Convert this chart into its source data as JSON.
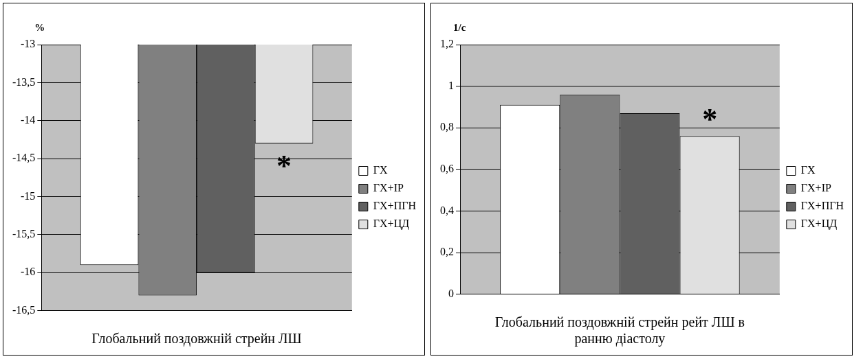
{
  "chart_data": [
    {
      "type": "bar",
      "ylabel": "%",
      "xlabel": "Глобальний поздовжній стрейн ЛШ",
      "categories": [
        null
      ],
      "series": [
        {
          "name": "ГХ",
          "color": "#ffffff",
          "values": [
            -15.9
          ]
        },
        {
          "name": "ГХ+ІР",
          "color": "#808080",
          "values": [
            -16.3
          ]
        },
        {
          "name": "ГХ+ПГН",
          "color": "#606060",
          "values": [
            -16.0
          ]
        },
        {
          "name": "ГХ+ЦД",
          "color": "#e0e0e0",
          "values": [
            -14.3
          ]
        }
      ],
      "ylim": [
        -16.5,
        -13
      ],
      "yticks": [
        -13,
        {
          "value": -13.5,
          "label": "-13,5"
        },
        -14,
        {
          "value": -14.5,
          "label": "-14,5"
        },
        -15,
        {
          "value": -15.5,
          "label": "-15,5"
        },
        -16,
        {
          "value": -16.5,
          "label": "-16,5"
        }
      ],
      "grid": "y",
      "legend": "right",
      "annotations": [
        "*"
      ]
    },
    {
      "type": "bar",
      "ylabel": "1/с",
      "xlabel": "Глобальний поздовжній стрейн рейт ЛШ в ранню діастолу",
      "categories": [
        null
      ],
      "series": [
        {
          "name": "ГХ",
          "color": "#ffffff",
          "values": [
            0.91
          ]
        },
        {
          "name": "ГХ+ІР",
          "color": "#808080",
          "values": [
            0.96
          ]
        },
        {
          "name": "ГХ+ПГН",
          "color": "#606060",
          "values": [
            0.87
          ]
        },
        {
          "name": "ГХ+ЦД",
          "color": "#e0e0e0",
          "values": [
            0.76
          ]
        }
      ],
      "ylim": [
        0,
        1.2
      ],
      "yticks": [
        0,
        {
          "value": 0.2,
          "label": "0,2"
        },
        {
          "value": 0.4,
          "label": "0,4"
        },
        {
          "value": 0.6,
          "label": "0,6"
        },
        {
          "value": 0.8,
          "label": "0,8"
        },
        1,
        {
          "value": 1.2,
          "label": "1,2"
        }
      ],
      "grid": "y",
      "legend": "right",
      "annotations": [
        "*"
      ]
    }
  ]
}
